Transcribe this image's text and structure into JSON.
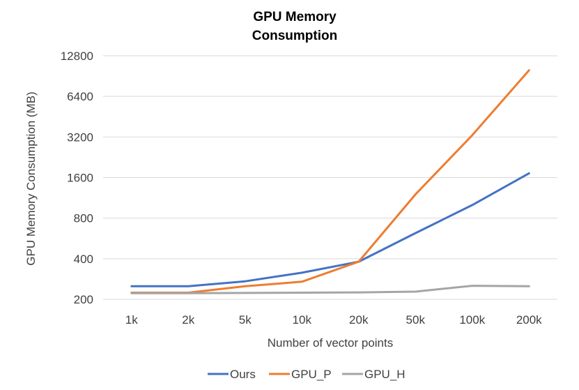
{
  "chart_data": {
    "type": "line",
    "title_lines": [
      "GPU Memory",
      "Consumption"
    ],
    "xlabel": "Number of vector points",
    "ylabel": "GPU Memory Consumption (MB)",
    "y_scale": "log2",
    "ylim": [
      200,
      12800
    ],
    "y_ticks": [
      200,
      400,
      800,
      1600,
      3200,
      6400,
      12800
    ],
    "categories": [
      "1k",
      "2k",
      "5k",
      "10k",
      "20k",
      "50k",
      "100k",
      "200k"
    ],
    "grid": true,
    "legend_position": "bottom",
    "series": [
      {
        "name": "Ours",
        "color": "#4472c4",
        "values": [
          250,
          250,
          272,
          315,
          380,
          620,
          1000,
          1720
        ]
      },
      {
        "name": "GPU_P",
        "color": "#ed7d31",
        "values": [
          224,
          224,
          250,
          270,
          380,
          1200,
          3300,
          10000
        ]
      },
      {
        "name": "GPU_H",
        "color": "#a5a5a5",
        "values": [
          222,
          222,
          223,
          224,
          225,
          228,
          252,
          250
        ]
      }
    ]
  }
}
